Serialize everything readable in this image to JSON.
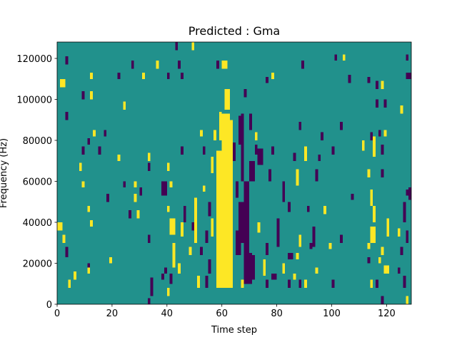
{
  "chart_data": {
    "type": "heatmap",
    "title": "Predicted : Gma",
    "x_label": "Time step",
    "y_label": "Frequency (Hz)",
    "xlim": [
      0,
      129
    ],
    "ylim": [
      0,
      128000
    ],
    "xticks": [
      0,
      20,
      40,
      60,
      80,
      100,
      120
    ],
    "yticks": [
      0,
      20000,
      40000,
      60000,
      80000,
      100000,
      120000
    ],
    "colors": [
      "#440154",
      "#21918c",
      "#fde725"
    ],
    "background": 1,
    "cells": [
      [
        3,
        4,
        117000,
        121000,
        0
      ],
      [
        27,
        28,
        115000,
        119000,
        0
      ],
      [
        36,
        37,
        115000,
        119000,
        2
      ],
      [
        44,
        45,
        115000,
        119000,
        0
      ],
      [
        43,
        44,
        124000,
        128000,
        0
      ],
      [
        49,
        50,
        124000,
        128000,
        2
      ],
      [
        58,
        59,
        115000,
        119000,
        0
      ],
      [
        60,
        62,
        115000,
        119000,
        2
      ],
      [
        89,
        90,
        115000,
        119000,
        0
      ],
      [
        101,
        102,
        119000,
        122000,
        0
      ],
      [
        104,
        105,
        119000,
        122000,
        2
      ],
      [
        127,
        128,
        119000,
        122000,
        0
      ],
      [
        127,
        129,
        110000,
        113000,
        0
      ],
      [
        1,
        3,
        106000,
        110000,
        2
      ],
      [
        12,
        13,
        110000,
        113000,
        2
      ],
      [
        22,
        23,
        110000,
        113000,
        0
      ],
      [
        31,
        32,
        110000,
        113000,
        2
      ],
      [
        40,
        41,
        110000,
        113000,
        0
      ],
      [
        45,
        46,
        110000,
        113000,
        0
      ],
      [
        78,
        79,
        110000,
        113000,
        2
      ],
      [
        76,
        77,
        108000,
        111000,
        0
      ],
      [
        106,
        107,
        108000,
        112000,
        0
      ],
      [
        113,
        114,
        108000,
        111000,
        0
      ],
      [
        116,
        117,
        105000,
        109000,
        0
      ],
      [
        118,
        119,
        105000,
        109000,
        2
      ],
      [
        9,
        10,
        100000,
        104000,
        0
      ],
      [
        12,
        13,
        100000,
        104000,
        2
      ],
      [
        62,
        63,
        101000,
        105000,
        2
      ],
      [
        68,
        69,
        101000,
        105000,
        0
      ],
      [
        24,
        25,
        95000,
        99000,
        2
      ],
      [
        116,
        117,
        96000,
        100000,
        0
      ],
      [
        119,
        120,
        96000,
        100000,
        0
      ],
      [
        125,
        126,
        93000,
        97000,
        2
      ],
      [
        3,
        4,
        90000,
        94000,
        0
      ],
      [
        70,
        71,
        85000,
        93000,
        0
      ],
      [
        88,
        89,
        85000,
        89000,
        0
      ],
      [
        103,
        104,
        85000,
        89000,
        0
      ],
      [
        13,
        14,
        82000,
        85000,
        2
      ],
      [
        17,
        18,
        82000,
        85000,
        0
      ],
      [
        52,
        53,
        82000,
        85000,
        2
      ],
      [
        57,
        58,
        80000,
        85000,
        2
      ],
      [
        66,
        67,
        78000,
        92000,
        0
      ],
      [
        72,
        73,
        80000,
        84000,
        2
      ],
      [
        96,
        97,
        80000,
        84000,
        0
      ],
      [
        114,
        115,
        80000,
        84000,
        0
      ],
      [
        117,
        118,
        82000,
        85000,
        0
      ],
      [
        119,
        120,
        82000,
        85000,
        2
      ],
      [
        11,
        12,
        78000,
        81000,
        0
      ],
      [
        72,
        73,
        73000,
        78000,
        0
      ],
      [
        9,
        10,
        73000,
        77000,
        0
      ],
      [
        15,
        16,
        73000,
        77000,
        0
      ],
      [
        45,
        46,
        73000,
        77000,
        0
      ],
      [
        53,
        54,
        73000,
        77000,
        0
      ],
      [
        64,
        65,
        70000,
        79000,
        0
      ],
      [
        73,
        75,
        68000,
        76000,
        0
      ],
      [
        78,
        79,
        73000,
        77000,
        0
      ],
      [
        86,
        87,
        70000,
        74000,
        0
      ],
      [
        90,
        91,
        70000,
        77000,
        2
      ],
      [
        100,
        101,
        73000,
        77000,
        0
      ],
      [
        111,
        112,
        75000,
        80000,
        2
      ],
      [
        115,
        116,
        72000,
        82000,
        2
      ],
      [
        22,
        23,
        70000,
        73000,
        2
      ],
      [
        33,
        34,
        70000,
        74000,
        2
      ],
      [
        95,
        96,
        70000,
        73000,
        0
      ],
      [
        118,
        119,
        73000,
        78000,
        0
      ],
      [
        8,
        9,
        65000,
        69000,
        2
      ],
      [
        33,
        34,
        65000,
        69000,
        0
      ],
      [
        40,
        41,
        65000,
        69000,
        2
      ],
      [
        56,
        57,
        64000,
        72000,
        2
      ],
      [
        70,
        72,
        60000,
        70000,
        0
      ],
      [
        77,
        78,
        60000,
        66000,
        0
      ],
      [
        87,
        88,
        58000,
        66000,
        2
      ],
      [
        94,
        95,
        60000,
        66000,
        0
      ],
      [
        113,
        114,
        62000,
        66000,
        2
      ],
      [
        118,
        119,
        62000,
        66000,
        0
      ],
      [
        9,
        10,
        57000,
        60000,
        2
      ],
      [
        24,
        25,
        57000,
        60000,
        0
      ],
      [
        28,
        29,
        57000,
        60000,
        2
      ],
      [
        38,
        40,
        53000,
        60000,
        0
      ],
      [
        41,
        42,
        57000,
        60000,
        2
      ],
      [
        65,
        66,
        52000,
        60000,
        0
      ],
      [
        82,
        83,
        50000,
        60000,
        0
      ],
      [
        30,
        31,
        53000,
        57000,
        0
      ],
      [
        53,
        54,
        55000,
        58000,
        2
      ],
      [
        114,
        115,
        48000,
        56000,
        2
      ],
      [
        128,
        129,
        51000,
        57000,
        0
      ],
      [
        127,
        128,
        53000,
        56000,
        0
      ],
      [
        107,
        108,
        51000,
        54000,
        0
      ],
      [
        18,
        19,
        50000,
        54000,
        0
      ],
      [
        28,
        29,
        50000,
        54000,
        2
      ],
      [
        11,
        12,
        45000,
        48000,
        2
      ],
      [
        46,
        47,
        40000,
        48000,
        0
      ],
      [
        50,
        51,
        30000,
        52000,
        2
      ],
      [
        55,
        56,
        43000,
        50000,
        0
      ],
      [
        58,
        59,
        45000,
        52000,
        2
      ],
      [
        84,
        85,
        45000,
        50000,
        0
      ],
      [
        91,
        92,
        45000,
        48000,
        0
      ],
      [
        97,
        98,
        44000,
        48000,
        2
      ],
      [
        26,
        27,
        42000,
        46000,
        0
      ],
      [
        29,
        30,
        42000,
        46000,
        2
      ],
      [
        40,
        41,
        45000,
        48000,
        2
      ],
      [
        115,
        116,
        40000,
        48000,
        2
      ],
      [
        126,
        127,
        40000,
        50000,
        0
      ],
      [
        12,
        13,
        38000,
        41000,
        2
      ],
      [
        0,
        2,
        36000,
        40000,
        2
      ],
      [
        33,
        34,
        30000,
        34000,
        0
      ],
      [
        41,
        43,
        34000,
        42000,
        2
      ],
      [
        45,
        46,
        33000,
        40000,
        2
      ],
      [
        49,
        50,
        36000,
        40000,
        0
      ],
      [
        54,
        55,
        30000,
        36000,
        0
      ],
      [
        56,
        57,
        33000,
        42000,
        2
      ],
      [
        73,
        74,
        35000,
        40000,
        2
      ],
      [
        80,
        81,
        28000,
        42000,
        0
      ],
      [
        88,
        89,
        28000,
        34000,
        2
      ],
      [
        93,
        94,
        28000,
        38000,
        0
      ],
      [
        103,
        104,
        30000,
        34000,
        0
      ],
      [
        114,
        116,
        30000,
        38000,
        2
      ],
      [
        120,
        121,
        33000,
        42000,
        2
      ],
      [
        124,
        125,
        33000,
        37000,
        2
      ],
      [
        127,
        128,
        30000,
        36000,
        0
      ],
      [
        2,
        3,
        30000,
        34000,
        2
      ],
      [
        3,
        4,
        23000,
        28000,
        0
      ],
      [
        42,
        43,
        24000,
        30000,
        2
      ],
      [
        48,
        49,
        24000,
        28000,
        2
      ],
      [
        52,
        53,
        24000,
        28000,
        0
      ],
      [
        76,
        77,
        24000,
        30000,
        0
      ],
      [
        84,
        86,
        22000,
        25000,
        0
      ],
      [
        87,
        88,
        22000,
        25000,
        2
      ],
      [
        92,
        93,
        27000,
        30000,
        0
      ],
      [
        99,
        100,
        27000,
        30000,
        2
      ],
      [
        113,
        114,
        27000,
        30000,
        2
      ],
      [
        118,
        119,
        24000,
        28000,
        2
      ],
      [
        125,
        126,
        24000,
        28000,
        0
      ],
      [
        11,
        12,
        16000,
        20000,
        0
      ],
      [
        19,
        20,
        20000,
        23000,
        2
      ],
      [
        42,
        43,
        18000,
        24000,
        2
      ],
      [
        55,
        56,
        15000,
        22000,
        0
      ],
      [
        75,
        76,
        14000,
        22000,
        2
      ],
      [
        82,
        83,
        15000,
        20000,
        2
      ],
      [
        94,
        95,
        15000,
        18000,
        2
      ],
      [
        113,
        114,
        20000,
        23000,
        0
      ],
      [
        117,
        118,
        20000,
        23000,
        2
      ],
      [
        119,
        121,
        15000,
        19000,
        2
      ],
      [
        124,
        125,
        15000,
        18000,
        0
      ],
      [
        11,
        12,
        15000,
        18000,
        2
      ],
      [
        39,
        40,
        15000,
        18000,
        0
      ],
      [
        44,
        45,
        15000,
        20000,
        2
      ],
      [
        4,
        5,
        8000,
        12000,
        2
      ],
      [
        6,
        7,
        12000,
        16000,
        2
      ],
      [
        34,
        35,
        8000,
        13000,
        0
      ],
      [
        38,
        39,
        12000,
        15000,
        0
      ],
      [
        41,
        42,
        10000,
        15000,
        0
      ],
      [
        51,
        52,
        8000,
        14000,
        2
      ],
      [
        54,
        55,
        8000,
        14000,
        0
      ],
      [
        67,
        68,
        8000,
        12000,
        2
      ],
      [
        78,
        80,
        12000,
        15000,
        0
      ],
      [
        84,
        85,
        8000,
        12000,
        0
      ],
      [
        86,
        87,
        12000,
        15000,
        2
      ],
      [
        88,
        89,
        8000,
        12000,
        0
      ],
      [
        100,
        101,
        8000,
        12000,
        0
      ],
      [
        114,
        115,
        8000,
        12000,
        2
      ],
      [
        116,
        117,
        8000,
        12000,
        0
      ],
      [
        126,
        127,
        8000,
        14000,
        0
      ],
      [
        34,
        35,
        4000,
        8000,
        0
      ],
      [
        40,
        41,
        4000,
        8000,
        2
      ],
      [
        33,
        34,
        0,
        3000,
        0
      ],
      [
        118,
        119,
        0,
        4000,
        0
      ],
      [
        127,
        128,
        0,
        4000,
        2
      ],
      [
        90,
        91,
        8000,
        12000,
        2
      ],
      [
        76,
        77,
        8000,
        12000,
        0
      ],
      [
        58,
        60,
        8000,
        75000,
        2
      ],
      [
        60,
        63,
        8000,
        93000,
        2
      ],
      [
        63,
        64,
        10000,
        90000,
        2
      ],
      [
        61,
        63,
        95000,
        105000,
        2
      ],
      [
        59,
        60,
        80000,
        94000,
        2
      ],
      [
        62,
        64,
        8000,
        40000,
        2
      ],
      [
        60,
        63,
        20000,
        38000,
        2
      ],
      [
        59,
        61,
        8000,
        30000,
        2
      ],
      [
        67,
        68,
        60000,
        93000,
        0
      ],
      [
        68,
        70,
        10000,
        60000,
        0
      ],
      [
        69,
        71,
        10000,
        25000,
        0
      ],
      [
        70,
        72,
        12000,
        24000,
        0
      ],
      [
        66,
        68,
        30000,
        50000,
        0
      ],
      [
        65,
        67,
        24000,
        36000,
        0
      ],
      [
        68,
        70,
        20000,
        25000,
        0
      ]
    ]
  }
}
